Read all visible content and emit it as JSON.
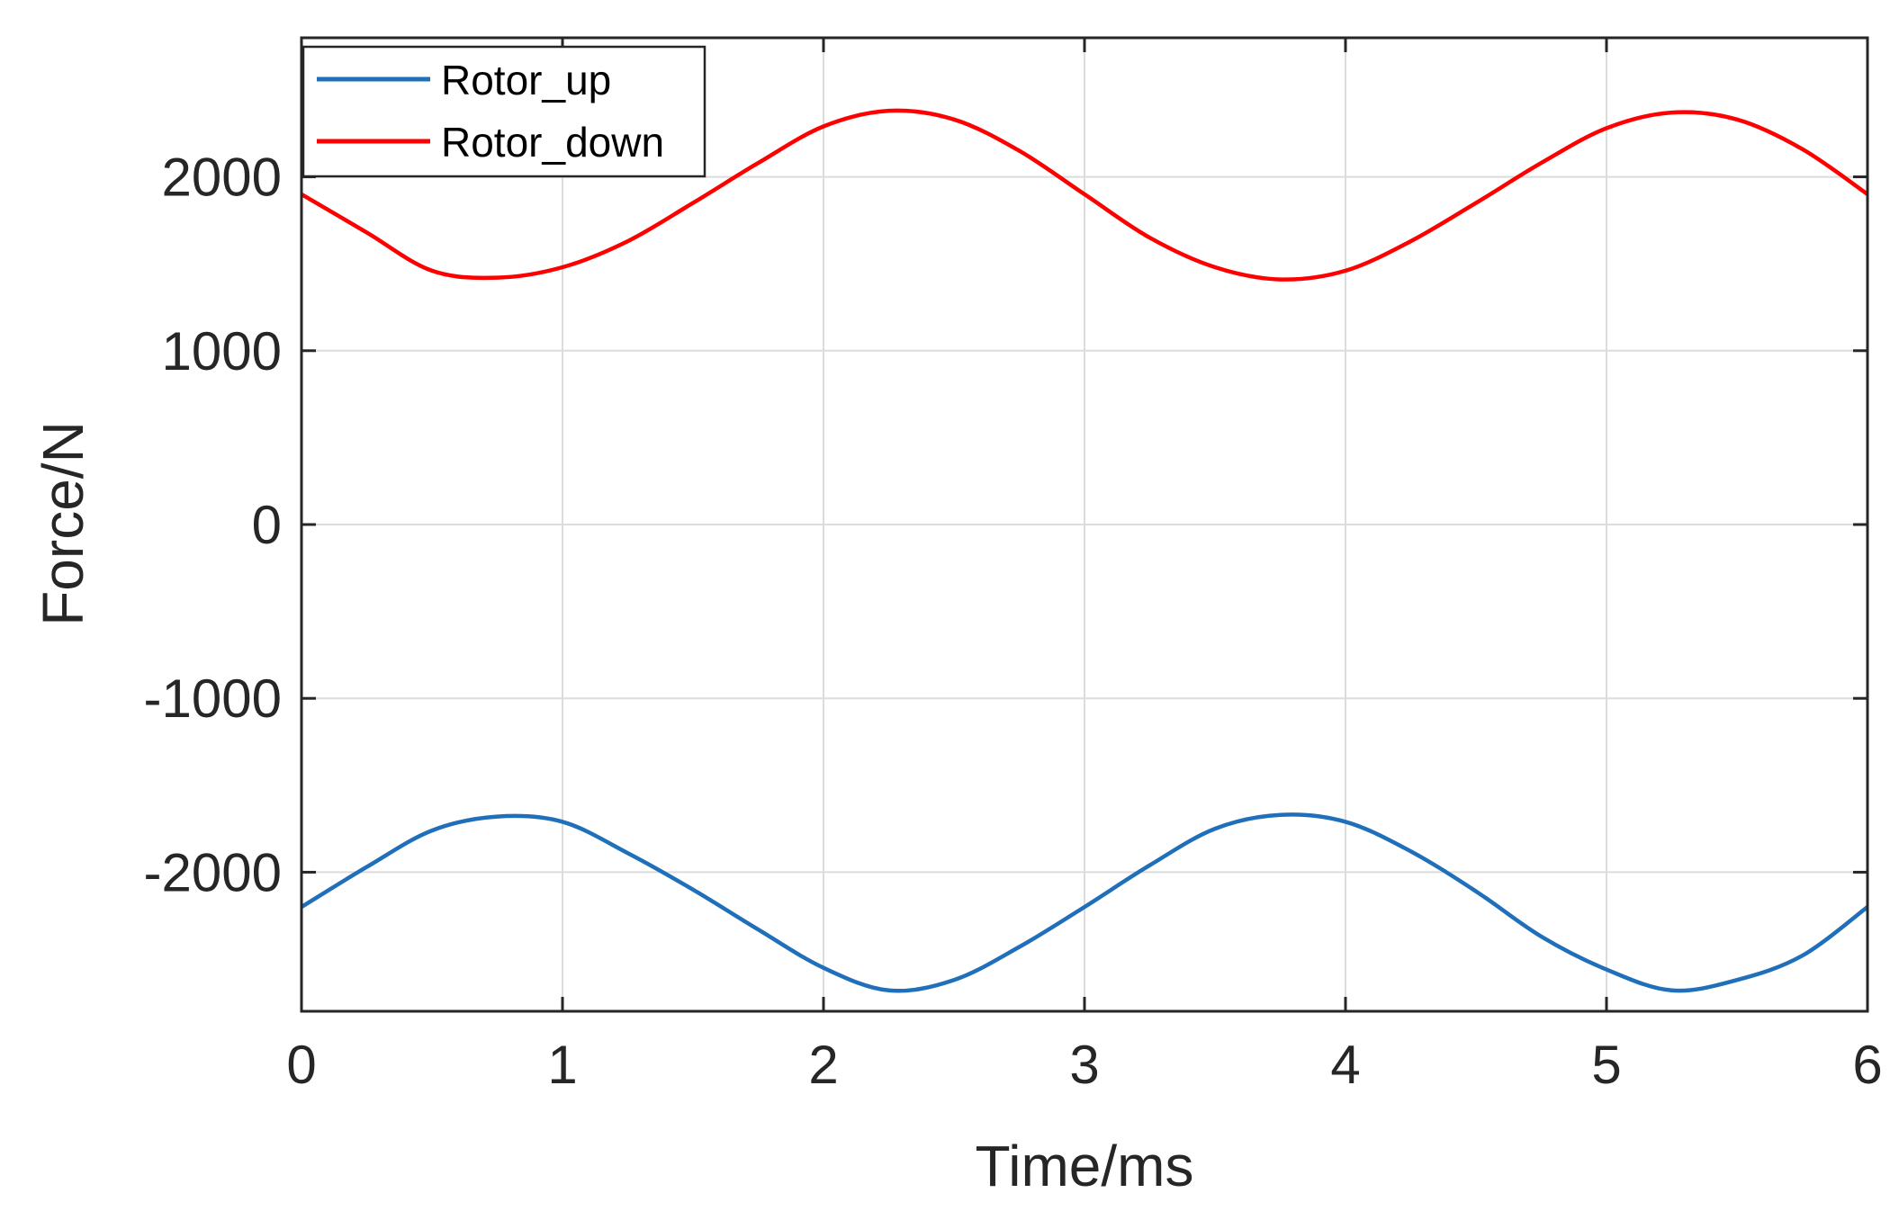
{
  "chart_data": {
    "type": "line",
    "title": "",
    "xlabel": "Time/ms",
    "ylabel": "Force/N",
    "xlim": [
      0,
      6
    ],
    "ylim": [
      -2800,
      2800
    ],
    "xticks": [
      0,
      1,
      2,
      3,
      4,
      5,
      6
    ],
    "yticks": [
      -2000,
      -1000,
      0,
      1000,
      2000
    ],
    "xtick_labels": [
      "0",
      "1",
      "2",
      "3",
      "4",
      "5",
      "6"
    ],
    "ytick_labels": [
      "-2000",
      "-1000",
      "0",
      "1000",
      "2000"
    ],
    "grid": true,
    "legend_position": "top-left",
    "series": [
      {
        "name": "Rotor_up",
        "color": "#1f6fba",
        "x": [
          0,
          0.25,
          0.5,
          0.75,
          1.0,
          1.25,
          1.5,
          1.75,
          2.0,
          2.25,
          2.5,
          2.75,
          3.0,
          3.25,
          3.5,
          3.75,
          4.0,
          4.25,
          4.5,
          4.75,
          5.0,
          5.25,
          5.5,
          5.75,
          6.0
        ],
        "y": [
          -2200,
          -1970,
          -1760,
          -1680,
          -1710,
          -1890,
          -2100,
          -2330,
          -2550,
          -2680,
          -2620,
          -2430,
          -2200,
          -1960,
          -1750,
          -1670,
          -1710,
          -1880,
          -2110,
          -2370,
          -2560,
          -2680,
          -2620,
          -2480,
          -2200
        ]
      },
      {
        "name": "Rotor_down",
        "color": "#ff0000",
        "x": [
          0,
          0.25,
          0.5,
          0.75,
          1.0,
          1.25,
          1.5,
          1.75,
          2.0,
          2.25,
          2.5,
          2.75,
          3.0,
          3.25,
          3.5,
          3.75,
          4.0,
          4.25,
          4.5,
          4.75,
          5.0,
          5.25,
          5.5,
          5.75,
          6.0
        ],
        "y": [
          1900,
          1680,
          1460,
          1420,
          1480,
          1630,
          1850,
          2080,
          2290,
          2380,
          2330,
          2150,
          1900,
          1650,
          1480,
          1410,
          1460,
          1630,
          1850,
          2080,
          2280,
          2370,
          2330,
          2160,
          1900
        ]
      }
    ]
  }
}
